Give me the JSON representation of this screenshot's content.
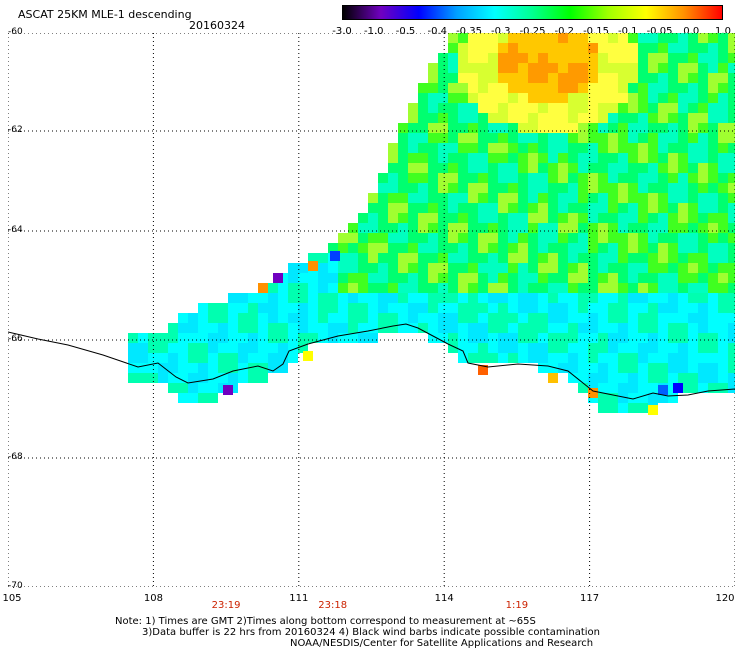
{
  "header": {
    "title": "ASCAT 25KM MLE-1 descending",
    "date": "20160324"
  },
  "colorbar": {
    "labels": [
      "-3.0",
      "-1.0",
      "-0.5",
      "-0.4",
      "-0.35",
      "-0.3",
      "-0.25",
      "-0.2",
      "-0.15",
      "-0.1",
      "-0.05",
      "0.0",
      "1.0"
    ],
    "colors": [
      "#000000",
      "#7000c0",
      "#0000ff",
      "#00a0ff",
      "#00ffff",
      "#00ff90",
      "#00ff00",
      "#a0ff00",
      "#ffff00",
      "#ff9000",
      "#ff0000"
    ]
  },
  "map": {
    "lat_labels": [
      "-60",
      "-62",
      "-64",
      "-66",
      "-68",
      "-70"
    ],
    "lon_labels": [
      "105",
      "108",
      "111",
      "114",
      "117",
      "120"
    ],
    "lat_range": [
      -70,
      -60
    ],
    "lon_range": [
      105,
      120
    ],
    "grid": true
  },
  "time_labels": [
    {
      "lon": 109.5,
      "text": "23:19"
    },
    {
      "lon": 111.7,
      "text": "23:18"
    },
    {
      "lon": 115.5,
      "text": "1:19"
    }
  ],
  "footer": {
    "note_line1": "Note: 1) Times are GMT 2)Times along bottom correspond to measurement at ~65S",
    "note_line2": "3)Data buffer is 22 hrs from 20160324 4) Black wind barbs indicate possible contamination",
    "credit": "NOAA/NESDIS/Center for Satellite Applications and Research"
  }
}
